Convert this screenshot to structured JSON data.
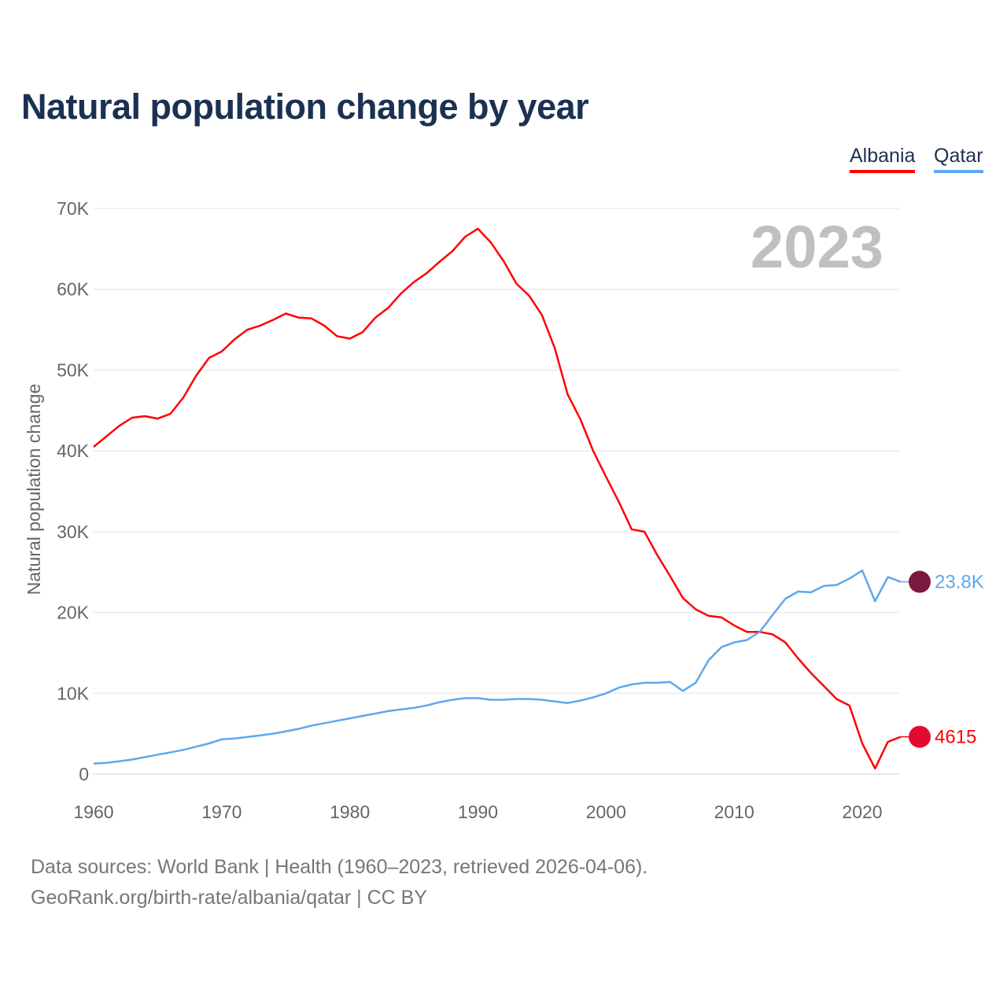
{
  "title": "Natural population change by year",
  "legend": [
    {
      "name": "Albania",
      "color": "#ff0000"
    },
    {
      "name": "Qatar",
      "color": "#5da8ee"
    }
  ],
  "footer": {
    "line1": "Data sources: World Bank | Health (1960–2023, retrieved 2026-04-06).",
    "line2": "GeoRank.org/birth-rate/albania/qatar | CC BY"
  },
  "chart_data": {
    "type": "line",
    "title": "Natural population change by year",
    "xlabel": "",
    "ylabel": "Natural population change",
    "year_label": "2023",
    "xlim": [
      1960,
      2023
    ],
    "ylim": [
      0,
      70000
    ],
    "x_ticks": [
      "1960",
      "1970",
      "1980",
      "1990",
      "2000",
      "2010",
      "2020"
    ],
    "y_ticks": [
      {
        "v": 0,
        "label": "0"
      },
      {
        "v": 10000,
        "label": "10K"
      },
      {
        "v": 20000,
        "label": "20K"
      },
      {
        "v": 30000,
        "label": "30K"
      },
      {
        "v": 40000,
        "label": "40K"
      },
      {
        "v": 50000,
        "label": "50K"
      },
      {
        "v": 60000,
        "label": "60K"
      },
      {
        "v": 70000,
        "label": "70K"
      }
    ],
    "grid": true,
    "legend_position": "top-right",
    "x_start": 1960,
    "series": [
      {
        "name": "Albania",
        "color": "#ff0000",
        "end_label": "4615",
        "flag_color": "#e30a2f",
        "values": [
          40500,
          41800,
          43100,
          44100,
          44300,
          44000,
          44600,
          46600,
          49300,
          51500,
          52300,
          53800,
          55000,
          55500,
          56200,
          57000,
          56500,
          56400,
          55500,
          54200,
          53900,
          54700,
          56500,
          57700,
          59500,
          60900,
          62000,
          63400,
          64700,
          66500,
          67500,
          65800,
          63500,
          60700,
          59200,
          56800,
          52700,
          47000,
          43900,
          40000,
          36800,
          33700,
          30300,
          30000,
          27100,
          24500,
          21800,
          20400,
          19600,
          19400,
          18400,
          17600,
          17600,
          17300,
          16300,
          14300,
          12500,
          10900,
          9300,
          8500,
          3800,
          700,
          4000,
          4615
        ]
      },
      {
        "name": "Qatar",
        "color": "#5da8ee",
        "end_label": "23.8K",
        "flag_color": "#7a1a40",
        "values": [
          1300,
          1400,
          1600,
          1800,
          2100,
          2400,
          2700,
          3000,
          3400,
          3800,
          4300,
          4400,
          4600,
          4800,
          5000,
          5300,
          5600,
          6000,
          6300,
          6600,
          6900,
          7200,
          7500,
          7800,
          8000,
          8200,
          8500,
          8900,
          9200,
          9400,
          9400,
          9200,
          9200,
          9300,
          9300,
          9200,
          9000,
          8800,
          9100,
          9500,
          10000,
          10700,
          11100,
          11300,
          11300,
          11400,
          10300,
          11300,
          14100,
          15700,
          16300,
          16600,
          17600,
          19700,
          21700,
          22600,
          22500,
          23300,
          23400,
          24200,
          25200,
          21400,
          24400,
          23800
        ]
      }
    ]
  }
}
